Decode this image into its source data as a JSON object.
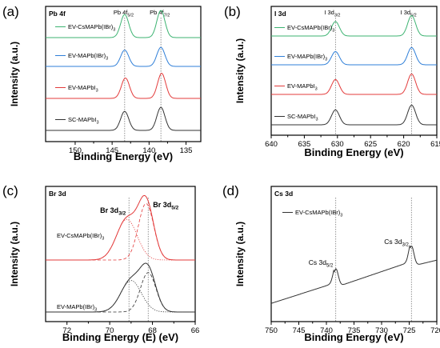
{
  "figure": {
    "panels": [
      {
        "id": "a",
        "label": "(a)",
        "title": "Pb 4f",
        "xlabel": "Binding Energy (eV)",
        "ylabel": "Intensity (a.u.)",
        "xticks": [
          150,
          145,
          140,
          135
        ]
      },
      {
        "id": "b",
        "label": "(b)",
        "title": "I 3d",
        "xlabel": "Binding Energy (eV)",
        "ylabel": "Intensity (a.u.)",
        "xticks": [
          640,
          635,
          630,
          625,
          620,
          615
        ]
      },
      {
        "id": "c",
        "label": "(c)",
        "title": "Br 3d",
        "xlabel": "Binding Energy (E) (eV)",
        "ylabel": "Intensity (a.u.)",
        "xticks": [
          72,
          70,
          68,
          66
        ]
      },
      {
        "id": "d",
        "label": "(d)",
        "title": "Cs 3d",
        "xlabel": "Binding Energy (eV)",
        "ylabel": "Intensity (a.u.)",
        "xticks": [
          750,
          745,
          740,
          735,
          730,
          725,
          720
        ]
      }
    ]
  },
  "chart_data": [
    {
      "type": "line",
      "panel": "a",
      "title": "Pb 4f",
      "xlabel": "Binding Energy (eV)",
      "ylabel": "Intensity (a.u.)",
      "xlim": [
        154,
        133
      ],
      "peaks_annotated": [
        {
          "label": "Pb 4f",
          "sub": "5/2",
          "x": 143.3
        },
        {
          "label": "Pb 4f",
          "sub": "7/2",
          "x": 138.4
        }
      ],
      "series": [
        {
          "name": "EV-CsMAPb(IBr)",
          "sub": "3",
          "color": "#3cb371",
          "baseline": 3,
          "peaks": [
            {
              "x": 143.3,
              "h": 0.85,
              "w": 0.55
            },
            {
              "x": 138.4,
              "h": 1.0,
              "w": 0.55
            }
          ]
        },
        {
          "name": "EV-MAPb(IBr)",
          "sub": "3",
          "color": "#2f7fd8",
          "baseline": 2,
          "peaks": [
            {
              "x": 143.3,
              "h": 0.6,
              "w": 0.55
            },
            {
              "x": 138.4,
              "h": 0.7,
              "w": 0.55
            }
          ]
        },
        {
          "name": "EV-MAPbI",
          "sub": "3",
          "color": "#e33b3b",
          "baseline": 1,
          "peaks": [
            {
              "x": 143.2,
              "h": 0.75,
              "w": 0.55
            },
            {
              "x": 138.3,
              "h": 0.92,
              "w": 0.55
            }
          ]
        },
        {
          "name": "SC-MAPbI",
          "sub": "3",
          "color": "#333333",
          "baseline": 0,
          "peaks": [
            {
              "x": 143.3,
              "h": 0.7,
              "w": 0.55
            },
            {
              "x": 138.4,
              "h": 0.85,
              "w": 0.55
            }
          ]
        }
      ]
    },
    {
      "type": "line",
      "panel": "b",
      "title": "I 3d",
      "xlabel": "Binding Energy (eV)",
      "ylabel": "Intensity (a.u.)",
      "xlim": [
        640,
        615
      ],
      "peaks_annotated": [
        {
          "label": "I 3d",
          "sub": "3/2",
          "x": 630.3
        },
        {
          "label": "I 3d",
          "sub": "5/2",
          "x": 618.8
        }
      ],
      "series": [
        {
          "name": "EV-CsMAPb(IBr)",
          "sub": "3",
          "color": "#3cb371",
          "baseline": 3,
          "peaks": [
            {
              "x": 630.3,
              "h": 0.6,
              "w": 0.6
            },
            {
              "x": 618.8,
              "h": 0.85,
              "w": 0.6
            }
          ]
        },
        {
          "name": "EV-MAPb(IBr)",
          "sub": "3",
          "color": "#2f7fd8",
          "baseline": 2,
          "peaks": [
            {
              "x": 630.3,
              "h": 0.55,
              "w": 0.6
            },
            {
              "x": 618.8,
              "h": 0.72,
              "w": 0.6
            }
          ]
        },
        {
          "name": "EV-MAPbI",
          "sub": "3",
          "color": "#e33b3b",
          "baseline": 1,
          "peaks": [
            {
              "x": 630.3,
              "h": 0.62,
              "w": 0.6
            },
            {
              "x": 618.8,
              "h": 0.85,
              "w": 0.6
            }
          ]
        },
        {
          "name": "SC-MAPbI",
          "sub": "3",
          "color": "#333333",
          "baseline": 0,
          "peaks": [
            {
              "x": 630.3,
              "h": 0.62,
              "w": 0.6
            },
            {
              "x": 618.8,
              "h": 0.82,
              "w": 0.6
            }
          ]
        }
      ]
    },
    {
      "type": "line",
      "panel": "c",
      "title": "Br 3d",
      "xlabel": "Binding Energy (E) (eV)",
      "ylabel": "Intensity (a.u.)",
      "xlim": [
        73,
        66
      ],
      "peaks_annotated": [
        {
          "label": "Br 3d",
          "sub": "3/2",
          "x": 69.1
        },
        {
          "label": "Br 3d",
          "sub": "5/2",
          "x": 68.2
        }
      ],
      "series": [
        {
          "name": "EV-CsMAPb(IBr)",
          "sub": "3",
          "color": "#e33b3b",
          "baseline": 1,
          "peaks": [
            {
              "x": 69.2,
              "h": 0.62,
              "w": 0.48
            },
            {
              "x": 68.3,
              "h": 0.86,
              "w": 0.36
            }
          ]
        },
        {
          "name": "EV-MAPb(IBr)",
          "sub": "3",
          "color": "#333333",
          "baseline": 0,
          "peaks": [
            {
              "x": 69.0,
              "h": 0.48,
              "w": 0.48
            },
            {
              "x": 68.2,
              "h": 0.6,
              "w": 0.36
            }
          ]
        }
      ]
    },
    {
      "type": "line",
      "panel": "d",
      "title": "Cs 3d",
      "xlabel": "Binding Energy (eV)",
      "ylabel": "Intensity (a.u.)",
      "xlim": [
        750,
        720
      ],
      "peaks_annotated": [
        {
          "label": "Cs 3d",
          "sub": "5/2",
          "x": 738.3
        },
        {
          "label": "Cs 3d",
          "sub": "3/2",
          "x": 724.6
        }
      ],
      "series": [
        {
          "name": "EV-CsMAPb(IBr)",
          "sub": "3",
          "color": "#333333",
          "background": [
            [
              750,
              0.05
            ],
            [
              738.6,
              0.27
            ],
            [
              738.6,
              0.22
            ],
            [
              724.9,
              0.5
            ],
            [
              724.9,
              0.45
            ],
            [
              720,
              0.52
            ]
          ],
          "peaks": [
            {
              "x": 738.3,
              "h": 0.2,
              "w": 0.45
            },
            {
              "x": 724.6,
              "h": 0.22,
              "w": 0.45
            }
          ]
        }
      ]
    }
  ]
}
